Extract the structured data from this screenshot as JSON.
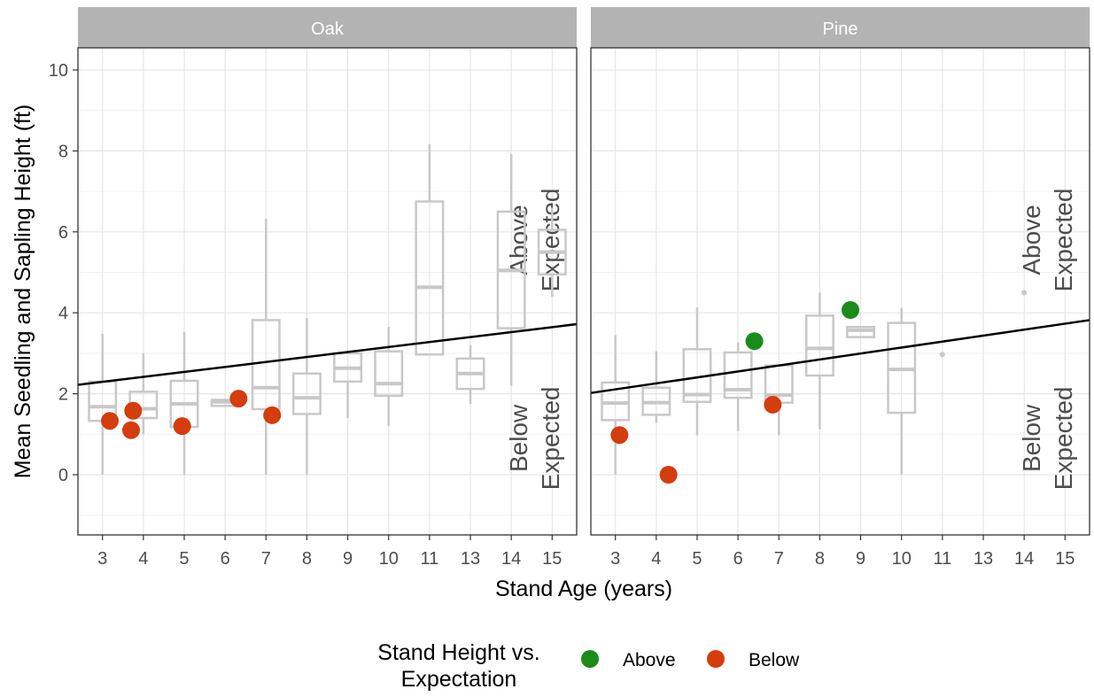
{
  "chart_data": {
    "type": "box",
    "y_label": "Mean Seedling and Sapling Height (ft)",
    "x_label": "Stand Age (years)",
    "x_ticks": [
      "3",
      "4",
      "5",
      "6",
      "7",
      "8",
      "9",
      "10",
      "11",
      "13",
      "14",
      "15"
    ],
    "y_ticks": [
      0,
      2,
      4,
      6,
      8,
      10
    ],
    "ylim": [
      -1.5,
      10.6
    ],
    "grid": true,
    "legend": {
      "title_lines": [
        "Stand Height vs.",
        "Expectation"
      ],
      "placement": "bottom",
      "items": [
        {
          "label": "Above",
          "color": "#1a8c1a"
        },
        {
          "label": "Below",
          "color": "#d43d0d"
        }
      ]
    },
    "colors": {
      "box": "#c8c8c8",
      "strip": "#b3b3b3",
      "strip_text": "#ffffff",
      "grid": "#e6e6e6",
      "axis_text": "#4d4d4d",
      "trend": "#000000",
      "annot": "#4d4d4d",
      "above": "#1a8c1a",
      "below": "#d43d0d"
    },
    "panels": [
      {
        "name": "Oak",
        "annotations": {
          "above": [
            "Above",
            "Expected"
          ],
          "below": [
            "Below",
            "Expected"
          ]
        },
        "trend": {
          "from": [
            2.4,
            2.22
          ],
          "to": [
            15.6,
            3.72
          ]
        },
        "boxes": [
          {
            "x": 3,
            "min": 0.0,
            "q1": 1.33,
            "median": 1.68,
            "q3": 2.3,
            "max": 3.48
          },
          {
            "x": 4,
            "min": 1.0,
            "q1": 1.4,
            "median": 1.63,
            "q3": 2.05,
            "max": 3.0
          },
          {
            "x": 5,
            "min": 0.0,
            "q1": 1.18,
            "median": 1.75,
            "q3": 2.32,
            "max": 3.53
          },
          {
            "x": 6,
            "min": 1.7,
            "q1": 1.7,
            "median": 1.8,
            "q3": 1.85,
            "max": 1.85
          },
          {
            "x": 7,
            "min": 0.0,
            "q1": 1.62,
            "median": 2.15,
            "q3": 3.82,
            "max": 6.33
          },
          {
            "x": 8,
            "min": 0.0,
            "q1": 1.5,
            "median": 1.9,
            "q3": 2.5,
            "max": 3.87
          },
          {
            "x": 9,
            "min": 1.4,
            "q1": 2.3,
            "median": 2.63,
            "q3": 3.0,
            "max": 3.0
          },
          {
            "x": 10,
            "min": 1.2,
            "q1": 1.95,
            "median": 2.25,
            "q3": 3.05,
            "max": 3.65
          },
          {
            "x": 11,
            "min": 2.97,
            "q1": 2.97,
            "median": 4.63,
            "q3": 6.75,
            "max": 8.17
          },
          {
            "x": 13,
            "min": 1.75,
            "q1": 2.12,
            "median": 2.5,
            "q3": 2.87,
            "max": 3.2
          },
          {
            "x": 14,
            "min": 2.2,
            "q1": 3.62,
            "median": 5.05,
            "q3": 6.5,
            "max": 7.92
          },
          {
            "x": 15,
            "min": 4.4,
            "q1": 4.95,
            "median": 5.5,
            "q3": 6.05,
            "max": 6.6
          }
        ],
        "points": [
          {
            "x": 3.18,
            "y": 1.33,
            "group": "Below"
          },
          {
            "x": 3.75,
            "y": 1.58,
            "group": "Below"
          },
          {
            "x": 3.7,
            "y": 1.1,
            "group": "Below"
          },
          {
            "x": 4.95,
            "y": 1.2,
            "group": "Below"
          },
          {
            "x": 6.33,
            "y": 1.88,
            "group": "Below"
          },
          {
            "x": 7.15,
            "y": 1.47,
            "group": "Below"
          }
        ]
      },
      {
        "name": "Pine",
        "annotations": {
          "above": [
            "Above",
            "Expected"
          ],
          "below": [
            "Below",
            "Expected"
          ]
        },
        "trend": {
          "from": [
            2.4,
            2.02
          ],
          "to": [
            15.6,
            3.82
          ]
        },
        "boxes": [
          {
            "x": 3,
            "min": 0.0,
            "q1": 1.35,
            "median": 1.77,
            "q3": 2.28,
            "max": 3.45
          },
          {
            "x": 4,
            "min": 1.28,
            "q1": 1.48,
            "median": 1.78,
            "q3": 2.15,
            "max": 3.05
          },
          {
            "x": 5,
            "min": 0.97,
            "q1": 1.8,
            "median": 1.98,
            "q3": 3.1,
            "max": 4.13
          },
          {
            "x": 6,
            "min": 1.08,
            "q1": 1.9,
            "median": 2.1,
            "q3": 3.02,
            "max": 3.27
          },
          {
            "x": 7,
            "min": 0.97,
            "q1": 1.78,
            "median": 1.97,
            "q3": 2.7,
            "max": 2.7
          },
          {
            "x": 8,
            "min": 1.12,
            "q1": 2.45,
            "median": 3.12,
            "q3": 3.93,
            "max": 4.5
          },
          {
            "x": 9,
            "min": 3.4,
            "q1": 3.4,
            "median": 3.57,
            "q3": 3.65,
            "max": 3.65
          },
          {
            "x": 10,
            "min": 0.0,
            "q1": 1.53,
            "median": 2.6,
            "q3": 3.75,
            "max": 4.12
          },
          {
            "x": 11,
            "min": 2.97,
            "q1": 2.97,
            "median": 2.97,
            "q3": 2.97,
            "max": 2.97
          },
          {
            "x": 14,
            "min": 4.5,
            "q1": 4.5,
            "median": 4.5,
            "q3": 4.5,
            "max": 4.5
          }
        ],
        "points": [
          {
            "x": 6.4,
            "y": 3.3,
            "group": "Above"
          },
          {
            "x": 8.75,
            "y": 4.07,
            "group": "Above"
          },
          {
            "x": 3.1,
            "y": 0.98,
            "group": "Below"
          },
          {
            "x": 4.3,
            "y": 0.0,
            "group": "Below"
          },
          {
            "x": 6.85,
            "y": 1.73,
            "group": "Below"
          }
        ]
      }
    ]
  }
}
